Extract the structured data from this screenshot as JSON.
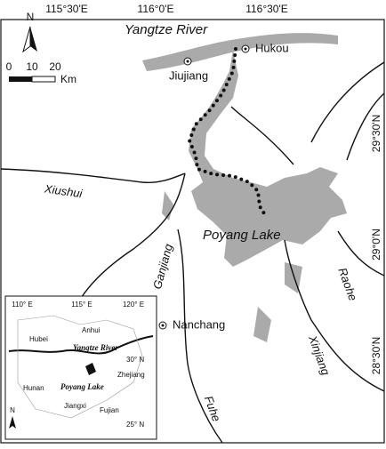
{
  "graticule": {
    "top": [
      "115°30'E",
      "116°0'E",
      "116°30'E"
    ],
    "right": [
      "29°30'N",
      "29°0'N",
      "28°30'N"
    ]
  },
  "north_arrow": {
    "label": "N"
  },
  "scale_bar": {
    "ticks": [
      "0",
      "10",
      "20"
    ],
    "unit": "Km"
  },
  "labels": {
    "yangtze": "Yangtze River",
    "hukou": "Hukou",
    "jiujiang": "Jiujiang",
    "xiushui": "Xiushui",
    "poyang": "Poyang Lake",
    "ganjiang": "Ganjiang",
    "raohe": "Raohe",
    "nanchang": "Nanchang",
    "xinjiang": "Xinjiang",
    "fuhe": "Fuhe"
  },
  "inset": {
    "lon": [
      "110° E",
      "115° E",
      "120° E"
    ],
    "lat": [
      "30° N",
      "25° N"
    ],
    "north": "N",
    "provinces": [
      "Hubei",
      "Anhui",
      "Zhejiang",
      "Hunan",
      "Jiangxi",
      "Fujian"
    ],
    "yangtze": "Yangtze River",
    "poyang": "Poyang Lake"
  }
}
